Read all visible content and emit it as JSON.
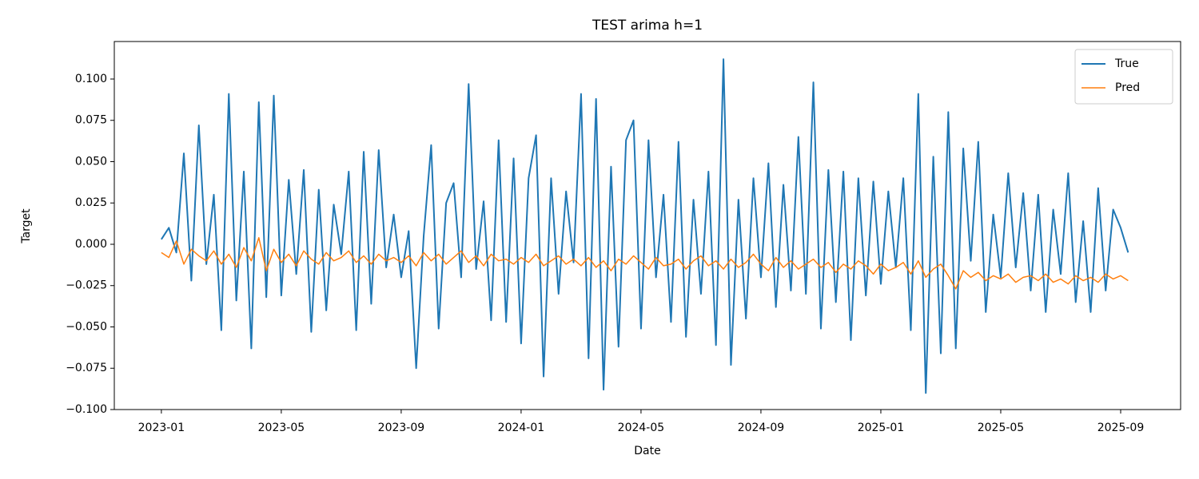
{
  "chart_data": {
    "type": "line",
    "title": "TEST arima h=1",
    "x_label": "Date",
    "y_label": "Target",
    "x": [
      0,
      0.25,
      0.5,
      0.75,
      1,
      1.25,
      1.5,
      1.75,
      2,
      2.25,
      2.5,
      2.75,
      3,
      3.25,
      3.5,
      3.75,
      4,
      4.25,
      4.5,
      4.75,
      5,
      5.25,
      5.5,
      5.75,
      6,
      6.25,
      6.5,
      6.75,
      7,
      7.25,
      7.5,
      7.75,
      8,
      8.25,
      8.5,
      8.75,
      9,
      9.25,
      9.5,
      9.75,
      10,
      10.25,
      10.5,
      10.75,
      11,
      11.25,
      11.5,
      11.75,
      12,
      12.25,
      12.5,
      12.75,
      13,
      13.25,
      13.5,
      13.75,
      14,
      14.25,
      14.5,
      14.75,
      15,
      15.25,
      15.5,
      15.75,
      16,
      16.25,
      16.5,
      16.75,
      17,
      17.25,
      17.5,
      17.75,
      18,
      18.25,
      18.5,
      18.75,
      19,
      19.25,
      19.5,
      19.75,
      20,
      20.25,
      20.5,
      20.75,
      21,
      21.25,
      21.5,
      21.75,
      22,
      22.25,
      22.5,
      22.75,
      23,
      23.25,
      23.5,
      23.75,
      24,
      24.25,
      24.5,
      24.75,
      25,
      25.25,
      25.5,
      25.75,
      26,
      26.25,
      26.5,
      26.75,
      27,
      27.25,
      27.5,
      27.75,
      28,
      28.25,
      28.5,
      28.75,
      29,
      29.25,
      29.5,
      29.75,
      30,
      30.25,
      30.5,
      30.75,
      31,
      31.25,
      31.5,
      31.75,
      32,
      32.25
    ],
    "series": [
      {
        "name": "True",
        "color": "#1f77b4",
        "values": [
          0.003,
          0.01,
          -0.005,
          0.055,
          -0.022,
          0.072,
          -0.012,
          0.03,
          -0.052,
          0.091,
          -0.034,
          0.044,
          -0.063,
          0.086,
          -0.032,
          0.09,
          -0.031,
          0.039,
          -0.018,
          0.045,
          -0.053,
          0.033,
          -0.04,
          0.024,
          -0.006,
          0.044,
          -0.052,
          0.056,
          -0.036,
          0.057,
          -0.014,
          0.018,
          -0.02,
          0.008,
          -0.075,
          0.005,
          0.06,
          -0.051,
          0.025,
          0.037,
          -0.02,
          0.097,
          -0.015,
          0.026,
          -0.046,
          0.063,
          -0.047,
          0.052,
          -0.06,
          0.04,
          0.066,
          -0.08,
          0.04,
          -0.03,
          0.032,
          -0.011,
          0.091,
          -0.069,
          0.088,
          -0.088,
          0.047,
          -0.062,
          0.063,
          0.075,
          -0.051,
          0.063,
          -0.02,
          0.03,
          -0.047,
          0.062,
          -0.056,
          0.027,
          -0.03,
          0.044,
          -0.061,
          0.112,
          -0.073,
          0.027,
          -0.045,
          0.04,
          -0.02,
          0.049,
          -0.038,
          0.036,
          -0.028,
          0.065,
          -0.03,
          0.098,
          -0.051,
          0.045,
          -0.035,
          0.044,
          -0.058,
          0.04,
          -0.031,
          0.038,
          -0.024,
          0.032,
          -0.014,
          0.04,
          -0.052,
          0.091,
          -0.09,
          0.053,
          -0.066,
          0.08,
          -0.063,
          0.058,
          -0.01,
          0.062,
          -0.041,
          0.018,
          -0.02,
          0.043,
          -0.014,
          0.031,
          -0.028,
          0.03,
          -0.041,
          0.021,
          -0.018,
          0.043,
          -0.035,
          0.014,
          -0.041,
          0.034,
          -0.028,
          0.021,
          0.01,
          -0.005
        ]
      },
      {
        "name": "Pred",
        "color": "#ff7f0e",
        "values": [
          -0.005,
          -0.008,
          0.002,
          -0.012,
          -0.003,
          -0.007,
          -0.01,
          -0.004,
          -0.012,
          -0.006,
          -0.014,
          -0.002,
          -0.01,
          0.004,
          -0.016,
          -0.003,
          -0.011,
          -0.006,
          -0.013,
          -0.004,
          -0.009,
          -0.012,
          -0.005,
          -0.01,
          -0.008,
          -0.004,
          -0.011,
          -0.007,
          -0.012,
          -0.006,
          -0.01,
          -0.008,
          -0.011,
          -0.007,
          -0.013,
          -0.005,
          -0.01,
          -0.006,
          -0.012,
          -0.008,
          -0.004,
          -0.011,
          -0.007,
          -0.013,
          -0.006,
          -0.01,
          -0.009,
          -0.012,
          -0.008,
          -0.011,
          -0.006,
          -0.013,
          -0.01,
          -0.007,
          -0.012,
          -0.009,
          -0.013,
          -0.008,
          -0.014,
          -0.01,
          -0.016,
          -0.009,
          -0.012,
          -0.007,
          -0.011,
          -0.015,
          -0.008,
          -0.013,
          -0.012,
          -0.009,
          -0.015,
          -0.01,
          -0.007,
          -0.013,
          -0.01,
          -0.015,
          -0.009,
          -0.014,
          -0.011,
          -0.006,
          -0.012,
          -0.016,
          -0.008,
          -0.014,
          -0.01,
          -0.015,
          -0.012,
          -0.009,
          -0.014,
          -0.011,
          -0.017,
          -0.012,
          -0.015,
          -0.01,
          -0.013,
          -0.018,
          -0.012,
          -0.016,
          -0.014,
          -0.011,
          -0.018,
          -0.01,
          -0.02,
          -0.015,
          -0.012,
          -0.019,
          -0.027,
          -0.016,
          -0.02,
          -0.017,
          -0.022,
          -0.019,
          -0.021,
          -0.018,
          -0.023,
          -0.02,
          -0.019,
          -0.022,
          -0.018,
          -0.023,
          -0.021,
          -0.024,
          -0.019,
          -0.022,
          -0.02,
          -0.023,
          -0.018,
          -0.021,
          -0.019,
          -0.022
        ]
      }
    ],
    "xlim": [
      -1.57,
      34.0
    ],
    "xticks": [
      {
        "value": 0,
        "label": "2023-01"
      },
      {
        "value": 4,
        "label": "2023-05"
      },
      {
        "value": 8,
        "label": "2023-09"
      },
      {
        "value": 12,
        "label": "2024-01"
      },
      {
        "value": 16,
        "label": "2024-05"
      },
      {
        "value": 20,
        "label": "2024-09"
      },
      {
        "value": 24,
        "label": "2025-01"
      },
      {
        "value": 28,
        "label": "2025-05"
      },
      {
        "value": 32,
        "label": "2025-09"
      }
    ],
    "ylim": [
      -0.1,
      0.1227
    ],
    "yticks": [
      {
        "value": -0.1,
        "label": "−0.100"
      },
      {
        "value": -0.075,
        "label": "−0.075"
      },
      {
        "value": -0.05,
        "label": "−0.050"
      },
      {
        "value": -0.025,
        "label": "−0.025"
      },
      {
        "value": 0,
        "label": "0.000"
      },
      {
        "value": 0.025,
        "label": "0.025"
      },
      {
        "value": 0.05,
        "label": "0.050"
      },
      {
        "value": 0.075,
        "label": "0.075"
      },
      {
        "value": 0.1,
        "label": "0.100"
      }
    ],
    "grid": false,
    "legend": "upper right"
  }
}
